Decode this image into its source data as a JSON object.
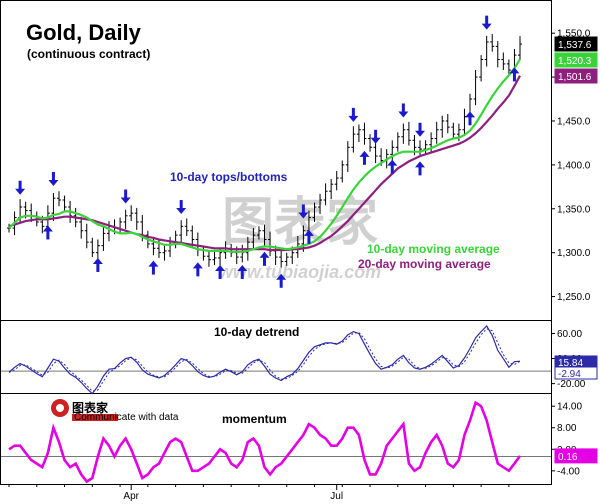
{
  "chart_data": [
    {
      "type": "ohlc",
      "title": "Gold, Daily",
      "subtitle": "(continuous contract)",
      "x_tick_labels": [
        "Apr",
        "Jul"
      ],
      "y_ticks": [
        1250,
        1300,
        1350,
        1400,
        1450,
        1500,
        1550
      ],
      "y_tick_labels": [
        "1,250.0",
        "1,300.0",
        "1,350.0",
        "1,400.0",
        "1,450.0",
        "1,500.0",
        "1,550.0"
      ],
      "ylim": [
        1237,
        1565
      ],
      "annotations": [
        "10-day tops/bottoms",
        "10-day moving average",
        "20-day moving average"
      ],
      "last_value_badges": [
        {
          "label": "1,537.6",
          "value": 1537.6,
          "color": "#000000"
        },
        {
          "label": "1,520.3",
          "value": 1520.3,
          "color": "#39d439"
        },
        {
          "label": "1,501.6",
          "value": 1501.6,
          "color": "#8e1f7e"
        }
      ],
      "close": [
        1328,
        1340,
        1352,
        1348,
        1342,
        1335,
        1330,
        1345,
        1362,
        1360,
        1352,
        1342,
        1335,
        1325,
        1312,
        1300,
        1308,
        1322,
        1330,
        1328,
        1335,
        1342,
        1345,
        1335,
        1320,
        1310,
        1305,
        1300,
        1302,
        1310,
        1320,
        1330,
        1325,
        1315,
        1303,
        1296,
        1292,
        1294,
        1300,
        1305,
        1300,
        1295,
        1300,
        1312,
        1320,
        1325,
        1315,
        1302,
        1295,
        1290,
        1295,
        1300,
        1310,
        1325,
        1340,
        1352,
        1360,
        1370,
        1378,
        1385,
        1400,
        1420,
        1435,
        1440,
        1430,
        1420,
        1410,
        1405,
        1412,
        1420,
        1432,
        1440,
        1428,
        1420,
        1418,
        1423,
        1430,
        1440,
        1450,
        1443,
        1435,
        1440,
        1455,
        1475,
        1500,
        1520,
        1540,
        1535,
        1520,
        1515,
        1508,
        1525,
        1537.6
      ],
      "series": [
        {
          "name": "10-day moving average",
          "color": "#39d439",
          "values": [
            1328,
            1334,
            1340,
            1342,
            1342,
            1341,
            1339,
            1340,
            1343,
            1344,
            1347,
            1347,
            1345,
            1343,
            1340,
            1336,
            1332,
            1330,
            1327,
            1324,
            1322,
            1322,
            1323,
            1321,
            1318,
            1315,
            1313,
            1311,
            1309,
            1309,
            1310,
            1310,
            1308,
            1306,
            1304,
            1303,
            1302,
            1302,
            1302,
            1302,
            1301,
            1301,
            1301,
            1302,
            1304,
            1306,
            1307,
            1307,
            1306,
            1305,
            1304,
            1305,
            1306,
            1308,
            1310,
            1313,
            1318,
            1325,
            1333,
            1342,
            1352,
            1362,
            1372,
            1380,
            1387,
            1393,
            1398,
            1402,
            1406,
            1410,
            1413,
            1415,
            1415,
            1415,
            1415,
            1417,
            1419,
            1422,
            1425,
            1428,
            1430,
            1431,
            1434,
            1439,
            1447,
            1457,
            1468,
            1478,
            1487,
            1495,
            1502,
            1510,
            1520.3
          ]
        },
        {
          "name": "20-day moving average",
          "color": "#8e1f7e",
          "values": [
            1330,
            1332,
            1334,
            1336,
            1337,
            1338,
            1338,
            1338,
            1339,
            1340,
            1341,
            1341,
            1340,
            1339,
            1338,
            1337,
            1335,
            1333,
            1331,
            1329,
            1327,
            1325,
            1323,
            1321,
            1320,
            1318,
            1317,
            1315,
            1314,
            1313,
            1312,
            1311,
            1310,
            1309,
            1308,
            1307,
            1306,
            1305,
            1305,
            1305,
            1304,
            1304,
            1304,
            1304,
            1304,
            1304,
            1304,
            1303,
            1303,
            1303,
            1303,
            1304,
            1304,
            1305,
            1306,
            1308,
            1311,
            1315,
            1319,
            1324,
            1330,
            1336,
            1343,
            1350,
            1357,
            1364,
            1371,
            1378,
            1384,
            1390,
            1396,
            1400,
            1404,
            1407,
            1410,
            1412,
            1414,
            1416,
            1418,
            1420,
            1422,
            1424,
            1427,
            1431,
            1436,
            1442,
            1449,
            1456,
            1464,
            1471,
            1479,
            1490,
            1501.6
          ]
        }
      ],
      "top_marker_indices": [
        2,
        8,
        21,
        31,
        53,
        62,
        66,
        71,
        74,
        86
      ],
      "bottom_marker_indices": [
        7,
        16,
        26,
        34,
        38,
        42,
        46,
        49,
        54,
        64,
        69,
        74,
        83,
        91
      ]
    },
    {
      "type": "line",
      "title": "10-day detrend",
      "y_ticks": [
        -20,
        20,
        60
      ],
      "y_tick_labels": [
        "-20.00",
        "20.00",
        "60.00"
      ],
      "ylim": [
        -27,
        72
      ],
      "zero_line": true,
      "last_value_badges": [
        {
          "label": "15.84",
          "value": 15.84,
          "color": "#2b2ba8"
        },
        {
          "label": "-2.94",
          "value": -2.94,
          "color": "#2b2ba8"
        }
      ],
      "values": [
        -2,
        6,
        12,
        8,
        2,
        -4,
        -9,
        5,
        19,
        16,
        5,
        -5,
        -10,
        -18,
        -28,
        -36,
        -24,
        -8,
        3,
        4,
        13,
        20,
        22,
        14,
        2,
        -5,
        -8,
        -11,
        -7,
        1,
        10,
        20,
        17,
        9,
        -1,
        -7,
        -10,
        -8,
        -2,
        3,
        -1,
        -6,
        -1,
        10,
        16,
        19,
        8,
        -5,
        -11,
        -15,
        -9,
        -5,
        4,
        17,
        30,
        39,
        42,
        45,
        45,
        43,
        48,
        58,
        63,
        60,
        43,
        27,
        12,
        3,
        6,
        10,
        19,
        25,
        13,
        5,
        3,
        6,
        11,
        18,
        25,
        15,
        5,
        9,
        21,
        36,
        53,
        63,
        72,
        57,
        33,
        20,
        6,
        15,
        15.84
      ]
    },
    {
      "type": "line",
      "title": "momentum",
      "y_ticks": [
        -4,
        2,
        8,
        14
      ],
      "y_tick_labels": [
        "-4.00",
        "2.00",
        "8.00",
        "14.00"
      ],
      "ylim": [
        -6,
        16
      ],
      "zero_line": true,
      "last_value_badges": [
        {
          "label": "0.16",
          "value": 0.16,
          "color": "#e400e4"
        }
      ],
      "values": [
        2,
        3,
        3,
        1,
        -1,
        -2,
        -3,
        1,
        8,
        4,
        -1,
        -3,
        -2,
        -5,
        -7,
        -6,
        0,
        5,
        3,
        0,
        3,
        5,
        2,
        -2,
        -6,
        -5,
        -3,
        -2,
        1,
        4,
        5,
        4,
        0,
        -4,
        -4,
        -3,
        -2,
        0,
        2,
        1,
        -2,
        -3,
        -1,
        4,
        5,
        3,
        -3,
        -5,
        -3,
        -2,
        0,
        2,
        4,
        6,
        9,
        8,
        6,
        5,
        3,
        3,
        5,
        8,
        8,
        6,
        -1,
        -5,
        -5,
        -2,
        3,
        5,
        7,
        9,
        -2,
        -4,
        -3,
        1,
        4,
        6,
        3,
        -2,
        -3,
        -1,
        6,
        10,
        15,
        14,
        10,
        4,
        -2,
        -3,
        -4,
        -2,
        0.16
      ]
    }
  ],
  "watermark": {
    "brand": "图表家",
    "site": "www.tubiaojia.com"
  },
  "logo": {
    "name": "图表家",
    "slogan": "Communicate with data"
  }
}
